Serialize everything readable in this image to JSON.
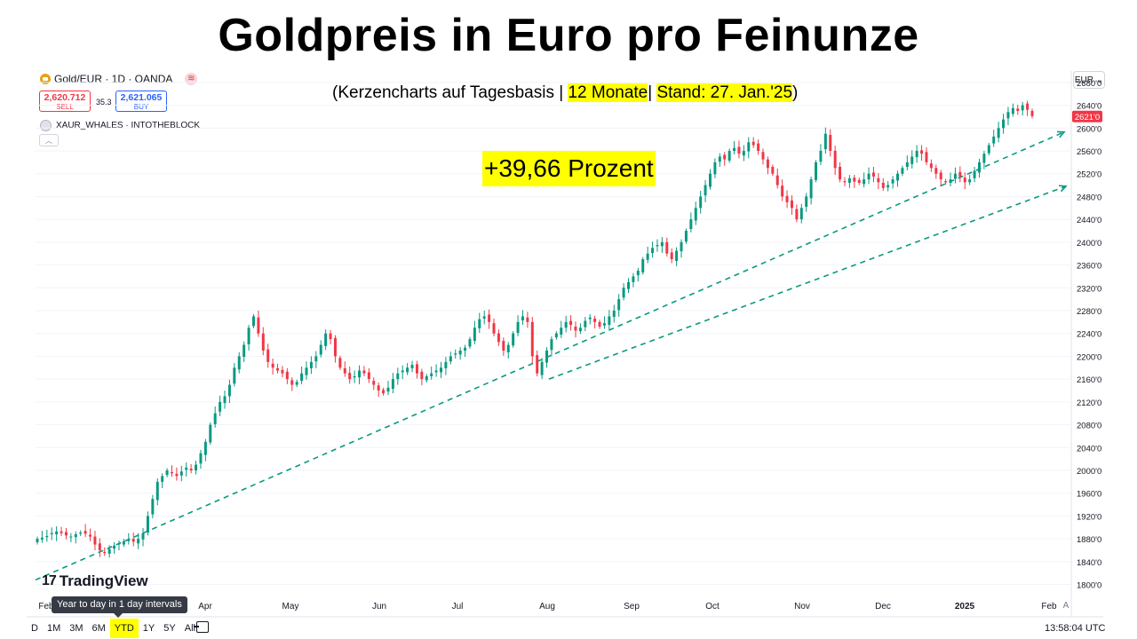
{
  "header": {
    "title": "Goldpreis in Euro pro Feinunze",
    "subtitle_prefix": "(Kerzencharts auf Tagesbasis | ",
    "subtitle_period": "12 Monate",
    "subtitle_sep": "| ",
    "subtitle_date": "Stand: 27. Jan.'25",
    "subtitle_suffix": ")",
    "callout": "+39,66 Prozent"
  },
  "toolbar": {
    "symbol": "Gold/EUR · 1D · OANDA",
    "sell_price": "2,620.712",
    "sell_label": "SELL",
    "spread": "35.3",
    "buy_price": "2,621.065",
    "buy_label": "BUY",
    "indicator": "XAUR_WHALES · INTOTHEBLOCK",
    "currency": "EUR",
    "logo": "TradingView",
    "tooltip": "Year to day in 1 day intervals",
    "ranges": [
      "D",
      "1M",
      "3M",
      "6M",
      "YTD",
      "1Y",
      "5Y",
      "All"
    ],
    "active_range": "YTD",
    "time": "13:58:04 UTC",
    "auto_label": "A"
  },
  "icons": [
    "gold-coin-icon",
    "menu-icon",
    "circle-icon",
    "collapse-icon",
    "chevron-down-icon",
    "calendar-icon"
  ],
  "colors": {
    "up": "#089981",
    "down": "#f23645",
    "trend": "#089981",
    "highlight": "#ffff00",
    "price_tag": "#f23645"
  },
  "chart_data": {
    "type": "candlestick",
    "title": "Goldpreis in Euro pro Feinunze",
    "y_unit": "EUR",
    "ylim": [
      1790,
      2700
    ],
    "y_ticks": [
      "1800'0",
      "1840'0",
      "1880'0",
      "1920'0",
      "1960'0",
      "2000'0",
      "2040'0",
      "2080'0",
      "2120'0",
      "2160'0",
      "2200'0",
      "2240'0",
      "2280'0",
      "2320'0",
      "2360'0",
      "2400'0",
      "2440'0",
      "2480'0",
      "2520'0",
      "2560'0",
      "2600'0",
      "2640'0",
      "2680'0"
    ],
    "x_ticks": [
      "Feb",
      "Mar",
      "Apr",
      "May",
      "Jun",
      "Jul",
      "Aug",
      "Sep",
      "Oct",
      "Nov",
      "Dec",
      "2025",
      "Feb"
    ],
    "last_price": "2621'0",
    "series": [
      {
        "name": "Gold/EUR",
        "close": [
          1880,
          1882,
          1885,
          1890,
          1893,
          1890,
          1886,
          1884,
          1888,
          1891,
          1889,
          1884,
          1870,
          1860,
          1855,
          1862,
          1868,
          1872,
          1876,
          1878,
          1875,
          1880,
          1890,
          1920,
          1950,
          1980,
          1990,
          2000,
          1995,
          1990,
          1998,
          2005,
          2000,
          2010,
          2030,
          2050,
          2080,
          2100,
          2120,
          2130,
          2150,
          2180,
          2200,
          2220,
          2250,
          2270,
          2240,
          2210,
          2190,
          2180,
          2175,
          2170,
          2160,
          2150,
          2155,
          2170,
          2180,
          2190,
          2200,
          2220,
          2240,
          2230,
          2200,
          2180,
          2170,
          2160,
          2165,
          2175,
          2170,
          2160,
          2150,
          2140,
          2135,
          2145,
          2160,
          2170,
          2175,
          2180,
          2185,
          2170,
          2160,
          2165,
          2170,
          2175,
          2180,
          2190,
          2200,
          2205,
          2210,
          2215,
          2230,
          2250,
          2265,
          2270,
          2260,
          2240,
          2225,
          2210,
          2220,
          2240,
          2260,
          2270,
          2260,
          2200,
          2170,
          2190,
          2210,
          2230,
          2240,
          2250,
          2260,
          2255,
          2245,
          2250,
          2262,
          2268,
          2260,
          2252,
          2258,
          2270,
          2280,
          2300,
          2320,
          2330,
          2340,
          2350,
          2370,
          2380,
          2390,
          2395,
          2400,
          2380,
          2370,
          2385,
          2400,
          2420,
          2440,
          2460,
          2480,
          2500,
          2520,
          2540,
          2550,
          2545,
          2560,
          2565,
          2555,
          2560,
          2575,
          2570,
          2560,
          2545,
          2530,
          2520,
          2500,
          2480,
          2470,
          2460,
          2440,
          2460,
          2480,
          2510,
          2540,
          2560,
          2590,
          2560,
          2530,
          2510,
          2505,
          2512,
          2506,
          2504,
          2510,
          2520,
          2515,
          2505,
          2495,
          2500,
          2510,
          2520,
          2530,
          2540,
          2550,
          2560,
          2555,
          2540,
          2530,
          2520,
          2510,
          2505,
          2510,
          2520,
          2515,
          2505,
          2510,
          2525,
          2540,
          2555,
          2570,
          2585,
          2600,
          2615,
          2628,
          2635,
          2630,
          2640,
          2632,
          2621
        ]
      }
    ],
    "trendlines": [
      {
        "from": [
          "Feb",
          1808
        ],
        "to": [
          "Feb",
          2593
        ]
      },
      {
        "from": [
          "Aug",
          2160
        ],
        "to": [
          "Feb",
          2498
        ]
      }
    ]
  }
}
